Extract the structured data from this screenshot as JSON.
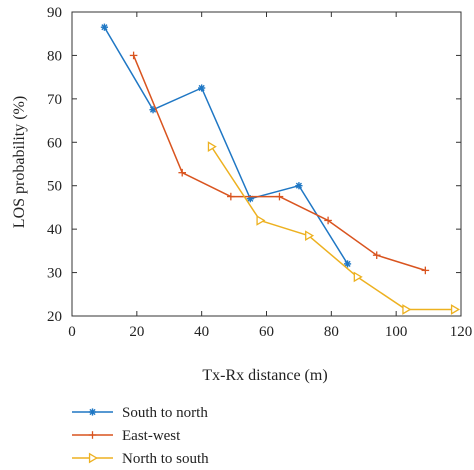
{
  "chart_data": {
    "type": "line",
    "title": "",
    "xlabel": "Tx-Rx distance (m)",
    "ylabel": "LOS probability (%)",
    "xlim": [
      0,
      120
    ],
    "ylim": [
      20,
      90
    ],
    "x_ticks": [
      0,
      20,
      40,
      60,
      80,
      100,
      120
    ],
    "y_ticks": [
      20,
      30,
      40,
      50,
      60,
      70,
      80,
      90
    ],
    "x_tick_labels": [
      "0",
      "20",
      "40",
      "60",
      "80",
      "100",
      "120"
    ],
    "y_tick_labels": [
      "20",
      "30",
      "40",
      "50",
      "60",
      "70",
      "80",
      "90"
    ],
    "grid": false,
    "legend_position": "below",
    "series": [
      {
        "name": "South to north",
        "color": "#1f77c4",
        "marker": "asterisk",
        "x": [
          10,
          25,
          40,
          55,
          70,
          85
        ],
        "y": [
          86.5,
          67.5,
          72.5,
          47,
          50,
          32
        ]
      },
      {
        "name": "East-west",
        "color": "#d9541f",
        "marker": "plus",
        "x": [
          19,
          34,
          49,
          64,
          79,
          94,
          109
        ],
        "y": [
          80,
          53,
          47.5,
          47.5,
          42,
          34,
          30.5
        ]
      },
      {
        "name": "North to south",
        "color": "#edb120",
        "marker": "triangle-right",
        "x": [
          43,
          58,
          73,
          88,
          103,
          118
        ],
        "y": [
          59,
          42,
          38.5,
          29,
          21.5,
          21.5
        ]
      }
    ]
  }
}
